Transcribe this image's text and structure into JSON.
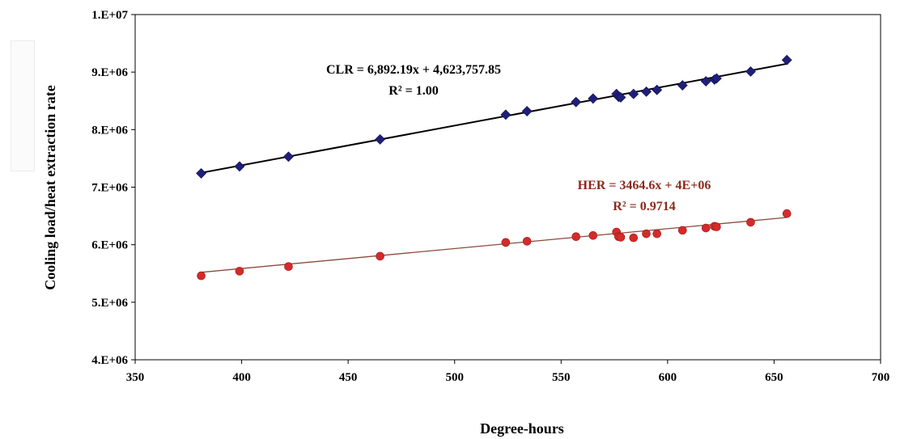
{
  "chart_data": {
    "type": "scatter",
    "xlabel": "Degree-hours",
    "ylabel": "Cooling load/heat extraction rate",
    "xlim": [
      350,
      700
    ],
    "ylim": [
      4000000,
      10000000
    ],
    "x_ticks": [
      "350",
      "400",
      "450",
      "500",
      "550",
      "600",
      "650",
      "700"
    ],
    "y_ticks": [
      "4.E+06",
      "5.E+06",
      "6.E+06",
      "7.E+06",
      "8.E+06",
      "9.E+06",
      "1.E+07"
    ],
    "x_tick_values": [
      350,
      400,
      450,
      500,
      550,
      600,
      650,
      700
    ],
    "y_tick_values": [
      4000000,
      5000000,
      6000000,
      7000000,
      8000000,
      9000000,
      10000000
    ],
    "grid": false,
    "legend": "none",
    "series": [
      {
        "marker": "diamond",
        "color": "#1f1f7a",
        "x": [
          381,
          399,
          422,
          465,
          524,
          534,
          557,
          565,
          576,
          577,
          578,
          584,
          590,
          595,
          607,
          618,
          622,
          623,
          639,
          656
        ],
        "y": [
          7240000,
          7360000,
          7530000,
          7830000,
          8260000,
          8320000,
          8480000,
          8540000,
          8620000,
          8570000,
          8560000,
          8620000,
          8660000,
          8690000,
          8770000,
          8840000,
          8870000,
          8890000,
          9010000,
          9210000
        ],
        "trendline": {
          "slope": 6892.19,
          "intercept": 4623757.85,
          "x_range": [
            381,
            656
          ],
          "color": "#000000"
        },
        "equation": "CLR = 6,892.19x + 4,623,757.85",
        "r2": "R² = 1.00"
      },
      {
        "marker": "circle",
        "color": "#d42a2a",
        "x": [
          381,
          399,
          422,
          465,
          524,
          534,
          557,
          565,
          576,
          577,
          578,
          584,
          590,
          595,
          607,
          618,
          622,
          623,
          639,
          656
        ],
        "y": [
          5460000,
          5540000,
          5620000,
          5800000,
          6040000,
          6060000,
          6140000,
          6160000,
          6220000,
          6140000,
          6130000,
          6120000,
          6190000,
          6190000,
          6250000,
          6290000,
          6320000,
          6310000,
          6390000,
          6540000
        ],
        "trendline": {
          "slope": 3464.6,
          "intercept": 4200000,
          "x_range": [
            381,
            656
          ],
          "color": "#8b4a3a"
        },
        "equation": "HER = 3464.6x + 4E+06",
        "r2": "R² = 0.9714"
      }
    ]
  }
}
